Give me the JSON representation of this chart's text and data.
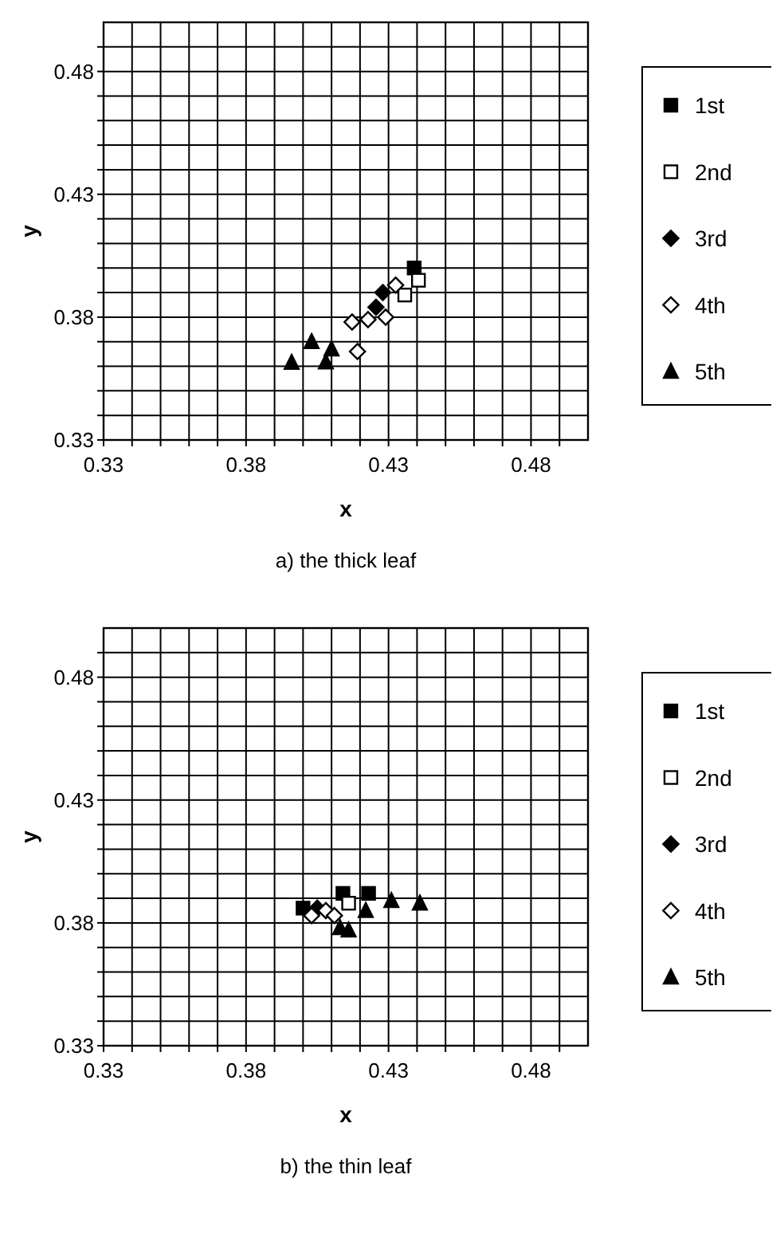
{
  "chart_data": [
    {
      "type": "scatter",
      "title": "a) the thick leaf",
      "xlabel": "x",
      "ylabel": "y",
      "xlim": [
        0.33,
        0.5
      ],
      "ylim": [
        0.33,
        0.5
      ],
      "xticks": [
        0.33,
        {
          "value": 0.34,
          "label": null
        },
        {
          "value": 0.35,
          "label": null
        },
        {
          "value": 0.36,
          "label": null
        },
        {
          "value": 0.37,
          "label": null
        },
        0.38,
        {
          "value": 0.39,
          "label": null
        },
        {
          "value": 0.4,
          "label": null
        },
        {
          "value": 0.41,
          "label": null
        },
        {
          "value": 0.42,
          "label": null
        },
        0.43,
        {
          "value": 0.44,
          "label": null
        },
        {
          "value": 0.45,
          "label": null
        },
        {
          "value": 0.46,
          "label": null
        },
        {
          "value": 0.47,
          "label": null
        },
        0.48,
        {
          "value": 0.49,
          "label": null
        }
      ],
      "yticks": [
        0.33,
        {
          "value": 0.34,
          "label": null
        },
        {
          "value": 0.35,
          "label": null
        },
        {
          "value": 0.36,
          "label": null
        },
        {
          "value": 0.37,
          "label": null
        },
        0.38,
        {
          "value": 0.39,
          "label": null
        },
        {
          "value": 0.4,
          "label": null
        },
        {
          "value": 0.41,
          "label": null
        },
        {
          "value": 0.42,
          "label": null
        },
        0.43,
        {
          "value": 0.44,
          "label": null
        },
        {
          "value": 0.45,
          "label": null
        },
        {
          "value": 0.46,
          "label": null
        },
        {
          "value": 0.47,
          "label": null
        },
        0.48,
        {
          "value": 0.49,
          "label": null
        }
      ],
      "grid": true,
      "legend": "right",
      "series": [
        {
          "name": "1st",
          "color": "#000000",
          "marker": "square",
          "x": [
            0.439
          ],
          "values": [
            0.4
          ]
        },
        {
          "name": "2nd",
          "color": "#ffffff",
          "marker": "square",
          "x": [
            0.4405,
            0.4357
          ],
          "values": [
            0.395,
            0.389
          ]
        },
        {
          "name": "3rd",
          "color": "#000000",
          "marker": "diamond",
          "x": [
            0.4256,
            0.428
          ],
          "values": [
            0.384,
            0.39
          ]
        },
        {
          "name": "4th",
          "color": "#ffffff",
          "marker": "diamond",
          "x": [
            0.4172,
            0.4228,
            0.429,
            0.4191,
            0.4325
          ],
          "values": [
            0.378,
            0.379,
            0.38,
            0.366,
            0.393
          ]
        },
        {
          "name": "5th",
          "color": "#000000",
          "marker": "triangle",
          "x": [
            0.396,
            0.403,
            0.408,
            0.41
          ],
          "values": [
            0.3615,
            0.37,
            0.3617,
            0.367
          ]
        }
      ]
    },
    {
      "type": "scatter",
      "title": "b) the thin leaf",
      "xlabel": "x",
      "ylabel": "y",
      "xlim": [
        0.33,
        0.5
      ],
      "ylim": [
        0.33,
        0.5
      ],
      "xticks": [
        0.33,
        {
          "value": 0.34,
          "label": null
        },
        {
          "value": 0.35,
          "label": null
        },
        {
          "value": 0.36,
          "label": null
        },
        {
          "value": 0.37,
          "label": null
        },
        0.38,
        {
          "value": 0.39,
          "label": null
        },
        {
          "value": 0.4,
          "label": null
        },
        {
          "value": 0.41,
          "label": null
        },
        {
          "value": 0.42,
          "label": null
        },
        0.43,
        {
          "value": 0.44,
          "label": null
        },
        {
          "value": 0.45,
          "label": null
        },
        {
          "value": 0.46,
          "label": null
        },
        {
          "value": 0.47,
          "label": null
        },
        0.48,
        {
          "value": 0.49,
          "label": null
        }
      ],
      "yticks": [
        0.33,
        {
          "value": 0.34,
          "label": null
        },
        {
          "value": 0.35,
          "label": null
        },
        {
          "value": 0.36,
          "label": null
        },
        {
          "value": 0.37,
          "label": null
        },
        0.38,
        {
          "value": 0.39,
          "label": null
        },
        {
          "value": 0.4,
          "label": null
        },
        {
          "value": 0.41,
          "label": null
        },
        {
          "value": 0.42,
          "label": null
        },
        0.43,
        {
          "value": 0.44,
          "label": null
        },
        {
          "value": 0.45,
          "label": null
        },
        {
          "value": 0.46,
          "label": null
        },
        {
          "value": 0.47,
          "label": null
        },
        0.48,
        {
          "value": 0.49,
          "label": null
        }
      ],
      "grid": true,
      "legend": "right",
      "series": [
        {
          "name": "1st",
          "color": "#000000",
          "marker": "square",
          "x": [
            0.4,
            0.414,
            0.423
          ],
          "values": [
            0.386,
            0.392,
            0.392
          ]
        },
        {
          "name": "2nd",
          "color": "#ffffff",
          "marker": "square",
          "x": [
            0.416
          ],
          "values": [
            0.388
          ]
        },
        {
          "name": "3rd",
          "color": "#000000",
          "marker": "diamond",
          "x": [
            0.405
          ],
          "values": [
            0.386
          ]
        },
        {
          "name": "4th",
          "color": "#ffffff",
          "marker": "diamond",
          "x": [
            0.403,
            0.408,
            0.411
          ],
          "values": [
            0.383,
            0.385,
            0.383
          ]
        },
        {
          "name": "5th",
          "color": "#000000",
          "marker": "triangle",
          "x": [
            0.413,
            0.416,
            0.422,
            0.431,
            0.441
          ],
          "values": [
            0.378,
            0.377,
            0.385,
            0.389,
            0.388
          ]
        }
      ]
    }
  ]
}
